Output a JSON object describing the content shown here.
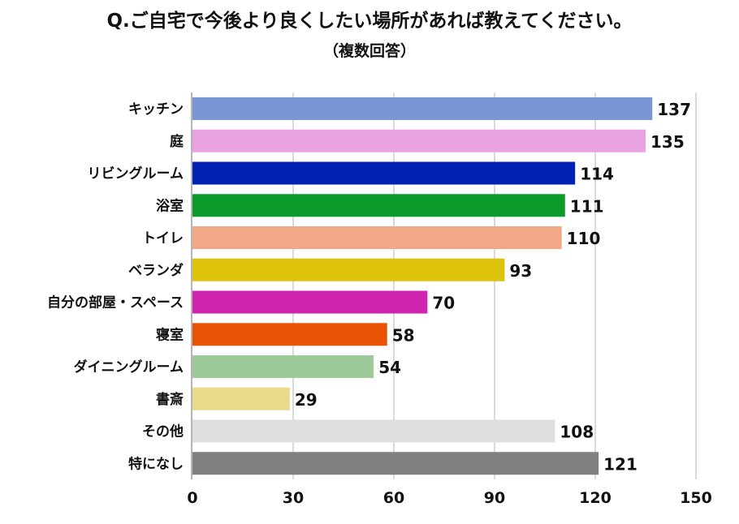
{
  "chart_data": {
    "type": "bar",
    "orientation": "horizontal",
    "title": "Q.ご自宅で今後より良くしたい場所があれば教えてください。",
    "subtitle": "（複数回答）",
    "categories": [
      "キッチン",
      "庭",
      "リビングルーム",
      "浴室",
      "トイレ",
      "ベランダ",
      "自分の部屋・スペース",
      "寝室",
      "ダイニングルーム",
      "書斎",
      "その他",
      "特になし"
    ],
    "values": [
      137,
      135,
      114,
      111,
      110,
      93,
      70,
      58,
      54,
      29,
      108,
      121
    ],
    "colors": [
      "#7b96d4",
      "#e9a3e0",
      "#0222b3",
      "#0c9a2b",
      "#f2a787",
      "#dcc20a",
      "#cf24b0",
      "#e85403",
      "#9dc99b",
      "#e9d98a",
      "#dedede",
      "#808080"
    ],
    "xlim": [
      0,
      150
    ],
    "xticks": [
      0,
      30,
      60,
      90,
      120,
      150
    ],
    "grid": true,
    "xlabel": "",
    "ylabel": ""
  }
}
